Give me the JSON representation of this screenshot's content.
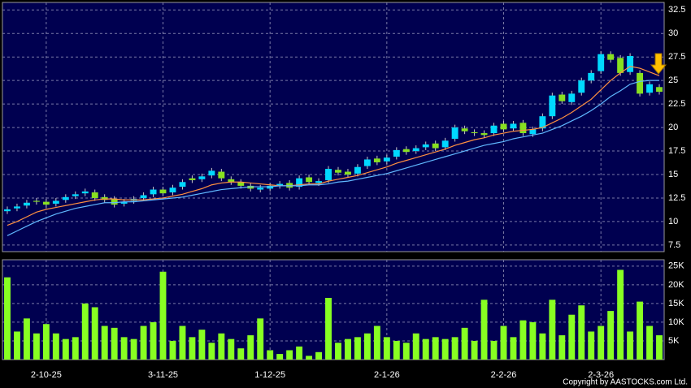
{
  "footer": "Copyright by AASTOCKS.com Ltd.",
  "chart_data": [
    {
      "type": "candlestick",
      "open": [
        11.1,
        11.4,
        11.7,
        12.2,
        12.1,
        11.9,
        12.3,
        12.7,
        13.0,
        13.1,
        12.6,
        12.4,
        11.9,
        12.2,
        12.5,
        12.9,
        13.4,
        13.1,
        13.7,
        14.6,
        14.5,
        14.9,
        15.3,
        14.5,
        14.2,
        13.8,
        13.4,
        13.5,
        13.8,
        14.1,
        13.7,
        14.7,
        14.1,
        14.4,
        15.5,
        15.3,
        15.1,
        15.9,
        16.7,
        16.4,
        16.9,
        17.7,
        17.5,
        17.9,
        18.3,
        17.9,
        18.8,
        19.9,
        19.5,
        19.4,
        19.4,
        20.4,
        19.9,
        20.5,
        19.3,
        19.9,
        21.2,
        23.5,
        22.7,
        23.7,
        25.0,
        26.0,
        27.8,
        27.4,
        25.9,
        25.8,
        23.7,
        24.3
      ],
      "high": [
        11.6,
        11.9,
        12.3,
        12.5,
        12.4,
        12.5,
        12.9,
        13.2,
        13.5,
        13.4,
        12.9,
        12.7,
        12.4,
        12.7,
        13.1,
        13.7,
        13.7,
        13.9,
        14.5,
        14.9,
        15.1,
        15.7,
        15.6,
        14.8,
        14.5,
        14.1,
        13.9,
        14.1,
        14.3,
        14.4,
        14.9,
        15.0,
        14.6,
        15.9,
        15.8,
        15.6,
        16.1,
        16.9,
        17.0,
        17.1,
        17.9,
        18.0,
        18.1,
        18.5,
        18.6,
        18.9,
        20.3,
        20.2,
        19.8,
        19.7,
        20.5,
        20.7,
        20.7,
        20.8,
        20.1,
        21.5,
        23.7,
        23.8,
        23.9,
        25.3,
        26.1,
        28.1,
        28.1,
        27.7,
        27.9,
        26.1,
        24.9,
        24.6
      ],
      "low": [
        10.8,
        11.1,
        11.4,
        11.8,
        11.5,
        11.6,
        12.0,
        12.4,
        12.7,
        12.2,
        12.0,
        11.5,
        11.6,
        11.9,
        12.2,
        12.6,
        12.7,
        12.8,
        13.4,
        14.1,
        14.2,
        14.6,
        14.3,
        13.9,
        13.5,
        13.2,
        13.1,
        13.2,
        13.5,
        13.3,
        13.4,
        13.9,
        13.8,
        14.1,
        14.9,
        14.7,
        14.8,
        15.6,
        16.0,
        16.1,
        16.6,
        17.1,
        17.2,
        17.6,
        17.5,
        17.6,
        18.5,
        19.3,
        19.1,
        18.9,
        19.1,
        19.5,
        19.6,
        19.1,
        19.0,
        19.6,
        20.9,
        22.5,
        22.4,
        23.4,
        24.7,
        25.7,
        26.9,
        25.5,
        25.6,
        23.3,
        23.4,
        23.5
      ],
      "close": [
        11.3,
        11.6,
        12.0,
        12.1,
        11.8,
        12.2,
        12.6,
        12.9,
        13.2,
        12.5,
        12.3,
        11.8,
        12.1,
        12.4,
        12.8,
        13.4,
        13.0,
        13.6,
        14.2,
        14.4,
        14.8,
        15.4,
        14.6,
        14.2,
        13.8,
        13.5,
        13.6,
        13.8,
        14.0,
        13.6,
        14.6,
        14.2,
        14.3,
        15.6,
        15.2,
        15.0,
        15.8,
        16.6,
        16.3,
        16.8,
        17.6,
        17.4,
        17.8,
        18.2,
        17.8,
        18.6,
        20.0,
        19.6,
        19.4,
        19.2,
        20.2,
        19.8,
        20.4,
        19.4,
        19.8,
        21.2,
        23.4,
        22.8,
        23.6,
        25.0,
        25.8,
        27.8,
        27.2,
        25.8,
        27.6,
        23.6,
        24.6,
        23.8
      ],
      "up_color": "#00d8ff",
      "down_color": "#88e020",
      "series": [
        {
          "color": "#ff9040",
          "values": [
            9.6,
            10.0,
            10.5,
            11.0,
            11.3,
            11.5,
            11.7,
            11.9,
            12.1,
            12.3,
            12.4,
            12.4,
            12.3,
            12.3,
            12.3,
            12.4,
            12.5,
            12.7,
            12.9,
            13.2,
            13.5,
            13.9,
            14.1,
            14.2,
            14.2,
            14.1,
            14.0,
            13.9,
            13.8,
            13.8,
            13.9,
            14.0,
            14.0,
            14.3,
            14.5,
            14.7,
            14.9,
            15.2,
            15.5,
            15.8,
            16.2,
            16.5,
            16.8,
            17.1,
            17.4,
            17.7,
            18.1,
            18.4,
            18.7,
            18.9,
            19.2,
            19.4,
            19.6,
            19.7,
            19.8,
            20.0,
            20.5,
            21.0,
            21.6,
            22.3,
            23.0,
            24.0,
            25.0,
            25.8,
            26.5,
            26.3,
            25.9,
            25.5
          ]
        },
        {
          "color": "#60b8ff",
          "values": [
            8.5,
            9.0,
            9.5,
            10.0,
            10.4,
            10.8,
            11.1,
            11.4,
            11.6,
            11.8,
            12.0,
            12.0,
            12.1,
            12.1,
            12.2,
            12.3,
            12.4,
            12.5,
            12.6,
            12.8,
            13.0,
            13.2,
            13.4,
            13.5,
            13.6,
            13.7,
            13.7,
            13.7,
            13.8,
            13.8,
            13.8,
            13.9,
            13.9,
            14.0,
            14.2,
            14.3,
            14.5,
            14.7,
            14.9,
            15.1,
            15.4,
            15.7,
            16.0,
            16.3,
            16.6,
            16.9,
            17.2,
            17.5,
            17.8,
            18.1,
            18.3,
            18.5,
            18.8,
            19.0,
            19.2,
            19.4,
            19.8,
            20.2,
            20.7,
            21.2,
            21.8,
            22.5,
            23.3,
            23.9,
            24.6,
            24.9,
            25.0,
            25.0
          ]
        }
      ],
      "ylim": [
        6.8,
        33.3
      ],
      "yticks": [
        7.5,
        10,
        12.5,
        15,
        17.5,
        20,
        22.5,
        25,
        27.5,
        30,
        32.5
      ],
      "grid": true
    },
    {
      "type": "bar",
      "categories": [
        null,
        null,
        null,
        null,
        "2-10-25",
        null,
        null,
        null,
        null,
        null,
        null,
        null,
        null,
        null,
        null,
        null,
        "3-11-25",
        null,
        null,
        null,
        null,
        null,
        null,
        null,
        null,
        null,
        null,
        "1-12-25",
        null,
        null,
        null,
        null,
        null,
        null,
        null,
        null,
        null,
        null,
        null,
        "2-1-26",
        null,
        null,
        null,
        null,
        null,
        null,
        null,
        null,
        null,
        null,
        null,
        "2-2-26",
        null,
        null,
        null,
        null,
        null,
        null,
        null,
        null,
        null,
        "2-3-26",
        null,
        null,
        null,
        null,
        null,
        null
      ],
      "values": [
        22000,
        7500,
        11000,
        7000,
        9500,
        7000,
        5500,
        6000,
        15000,
        14000,
        9000,
        8500,
        6000,
        5500,
        9000,
        10000,
        23500,
        5000,
        9000,
        6000,
        8000,
        4500,
        7000,
        5500,
        3000,
        6500,
        11000,
        2500,
        1500,
        2500,
        3500,
        1000,
        2000,
        16500,
        4500,
        5500,
        6000,
        7000,
        9000,
        6000,
        5000,
        4500,
        7000,
        5500,
        6000,
        5500,
        6000,
        8500,
        5000,
        16000,
        5000,
        9000,
        6000,
        10500,
        10000,
        7000,
        16000,
        6500,
        12000,
        14500,
        7500,
        9000,
        13000,
        24000,
        7500,
        15500,
        9000,
        6500
      ],
      "color": "#88ff22",
      "ylim": [
        0,
        26700
      ],
      "yticks": [
        {
          "value": 5000,
          "label": "5K"
        },
        {
          "value": 10000,
          "label": "10K"
        },
        {
          "value": 15000,
          "label": "15K"
        },
        {
          "value": 20000,
          "label": "20K"
        },
        {
          "value": 25000,
          "label": "25K"
        }
      ],
      "grid": true
    }
  ]
}
